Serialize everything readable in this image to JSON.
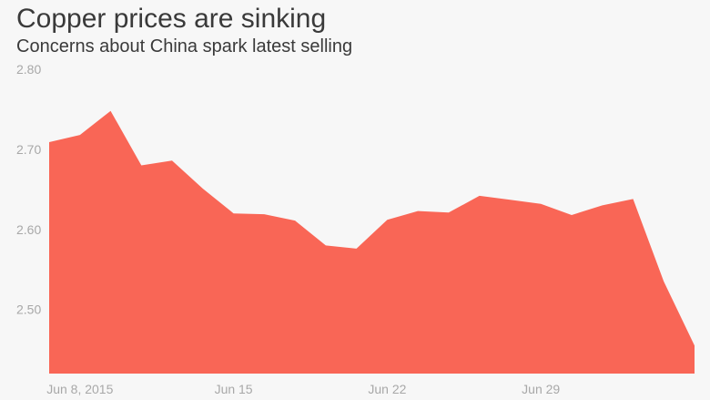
{
  "chart_data": {
    "type": "area",
    "title": "Copper prices are sinking",
    "subtitle": "Concerns about China spark latest selling",
    "xlabel": "",
    "ylabel": "",
    "ylim": [
      2.42,
      2.8
    ],
    "y_ticks": [
      2.5,
      2.6,
      2.7,
      2.8
    ],
    "y_tick_labels": [
      "2.50",
      "2.60",
      "2.70",
      "2.80"
    ],
    "x_ticks": [
      {
        "date": "2015-06-08",
        "label": "Jun 8, 2015"
      },
      {
        "date": "2015-06-15",
        "label": "Jun 15"
      },
      {
        "date": "2015-06-22",
        "label": "Jun 22"
      },
      {
        "date": "2015-06-29",
        "label": "Jun 29"
      }
    ],
    "grid": false,
    "color": "#f96656",
    "series": [
      {
        "x": [
          "2015-06-05",
          "2015-06-08",
          "2015-06-09",
          "2015-06-10",
          "2015-06-11",
          "2015-06-12",
          "2015-06-15",
          "2015-06-16",
          "2015-06-17",
          "2015-06-18",
          "2015-06-19",
          "2015-06-22",
          "2015-06-23",
          "2015-06-24",
          "2015-06-25",
          "2015-06-26",
          "2015-06-29",
          "2015-06-30",
          "2015-07-01",
          "2015-07-02",
          "2015-07-03",
          "2015-07-06"
        ],
        "values": [
          2.709,
          2.718,
          2.748,
          2.68,
          2.686,
          2.651,
          2.62,
          2.619,
          2.611,
          2.58,
          2.576,
          2.612,
          2.623,
          2.621,
          2.642,
          2.637,
          2.632,
          2.618,
          2.63,
          2.638,
          2.535,
          2.455
        ]
      }
    ]
  }
}
